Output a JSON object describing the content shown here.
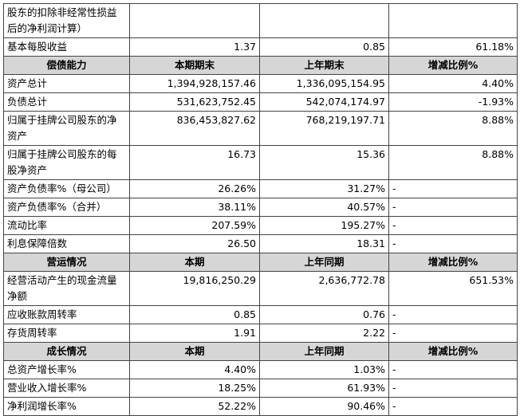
{
  "sections": [
    {
      "rows": [
        [
          "股东的扣除非经常性损益后的净利润计算）"
        ],
        [
          "基本每股收益",
          "1.37",
          "0.85",
          "61.18%"
        ]
      ]
    },
    {
      "header": [
        "偿债能力",
        "本期期末",
        "上年期末",
        "增减比例%"
      ],
      "rows": [
        [
          "资产总计",
          "1,394,928,157.46",
          "1,336,095,154.95",
          "4.40%"
        ],
        [
          "负债总计",
          "531,623,752.45",
          "542,074,174.97",
          "-1.93%"
        ],
        [
          "归属于挂牌公司股东的净资产",
          "836,453,827.62",
          "768,219,197.71",
          "8.88%"
        ],
        [
          "归属于挂牌公司股东的每股净资产",
          "16.73",
          "15.36",
          "8.88%"
        ],
        [
          "资产负债率%（母公司）",
          "26.26%",
          "31.27%",
          "-"
        ],
        [
          "资产负债率%（合并）",
          "38.11%",
          "40.57%",
          "-"
        ],
        [
          "流动比率",
          "207.59%",
          "195.27%",
          "-"
        ],
        [
          "利息保障倍数",
          "26.50",
          "18.31",
          "-"
        ]
      ]
    },
    {
      "header": [
        "营运情况",
        "本期",
        "上年同期",
        "增减比例%"
      ],
      "rows": [
        [
          "经营活动产生的现金流量净额",
          "19,816,250.29",
          "2,636,772.78",
          "651.53%"
        ],
        [
          "应收账款周转率",
          "0.85",
          "0.76",
          "-"
        ],
        [
          "存货周转率",
          "1.91",
          "2.22",
          "-"
        ]
      ]
    },
    {
      "header": [
        "成长情况",
        "本期",
        "上年同期",
        "增减比例%"
      ],
      "rows": [
        [
          "总资产增长率%",
          "4.40%",
          "1.03%",
          "-"
        ],
        [
          "营业收入增长率%",
          "18.25%",
          "61.93%",
          "-"
        ],
        [
          "净利润增长率%",
          "52.22%",
          "90.46%",
          "-"
        ]
      ]
    }
  ]
}
